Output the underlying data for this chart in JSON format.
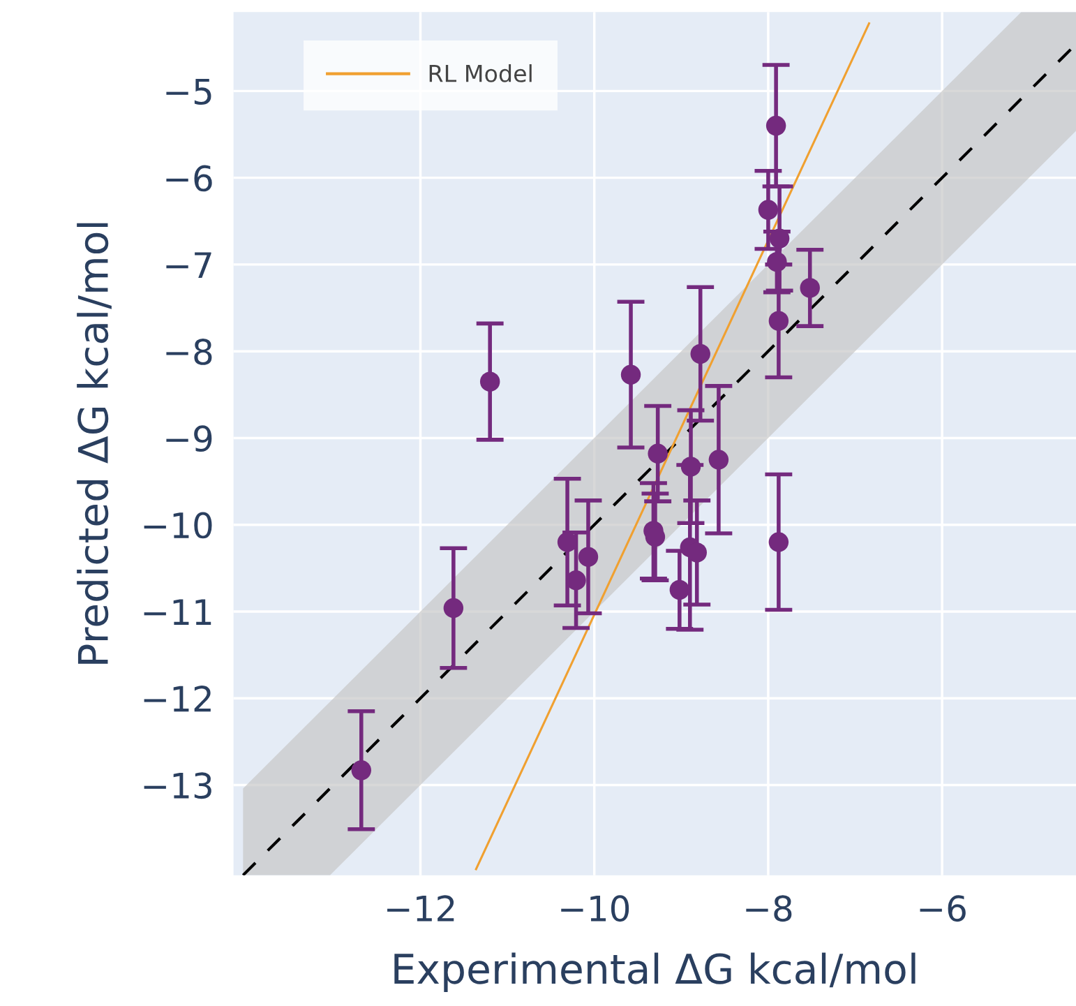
{
  "chart_data": {
    "type": "scatter",
    "xlabel": "Experimental ΔG kcal/mol",
    "ylabel": "Predicted ΔG kcal/mol",
    "xlim": [
      -14.15,
      -4.46
    ],
    "ylim": [
      -14.04,
      -4.09
    ],
    "xticks": [
      {
        "value": -12,
        "label": "−12"
      },
      {
        "value": -10,
        "label": "−10"
      },
      {
        "value": -8,
        "label": "−8"
      },
      {
        "value": -6,
        "label": "−6"
      }
    ],
    "yticks": [
      {
        "value": -13,
        "label": "−13"
      },
      {
        "value": -12,
        "label": "−12"
      },
      {
        "value": -11,
        "label": "−11"
      },
      {
        "value": -10,
        "label": "−10"
      },
      {
        "value": -9,
        "label": "−9"
      },
      {
        "value": -8,
        "label": "−8"
      },
      {
        "value": -7,
        "label": "−7"
      },
      {
        "value": -6,
        "label": "−6"
      },
      {
        "value": -5,
        "label": "−5"
      }
    ],
    "grid": true,
    "legend": "top left",
    "series": [
      {
        "type": "line",
        "color": "#000000",
        "line_style": "dashed",
        "x": [
          -14.04,
          -13.04,
          -5.09,
          -4.46
        ],
        "values": [
          -14.04,
          -13.04,
          -5.09,
          -4.46
        ],
        "lower": [
          -14.04,
          -14.04,
          -6.09,
          -5.46
        ],
        "upper": [
          -13.04,
          -12.04,
          -4.09,
          -4.09
        ]
      },
      {
        "type": "scatter",
        "color": "#742a7e",
        "marker": "circle",
        "x": [
          -12.68,
          -11.62,
          -11.2,
          -9.58,
          -7.91,
          -8.0,
          -7.87,
          -7.9,
          -7.88,
          -7.52,
          -8.78,
          -9.27,
          -9.32,
          -9.3,
          -8.89,
          -8.57,
          -9.02,
          -8.9,
          -8.82,
          -10.31,
          -10.21,
          -10.07,
          -7.88
        ],
        "values": [
          -12.83,
          -10.96,
          -8.35,
          -8.27,
          -5.4,
          -6.37,
          -6.7,
          -6.97,
          -7.65,
          -7.27,
          -8.03,
          -9.18,
          -10.07,
          -10.14,
          -9.33,
          -9.25,
          -10.75,
          -10.26,
          -10.32,
          -10.2,
          -10.64,
          -10.37,
          -10.2
        ],
        "errors": [
          0.68,
          0.69,
          0.67,
          0.84,
          0.7,
          0.45,
          0.6,
          0.35,
          0.65,
          0.44,
          0.77,
          0.55,
          0.55,
          0.5,
          0.65,
          0.85,
          0.45,
          0.95,
          0.6,
          0.73,
          0.55,
          0.65,
          0.78
        ]
      },
      {
        "type": "line",
        "name": "RL Model",
        "color": "#f0a030",
        "line_style": "solid",
        "x": [
          -11.36,
          -6.84
        ],
        "values": [
          -13.97,
          -4.22
        ]
      }
    ]
  }
}
